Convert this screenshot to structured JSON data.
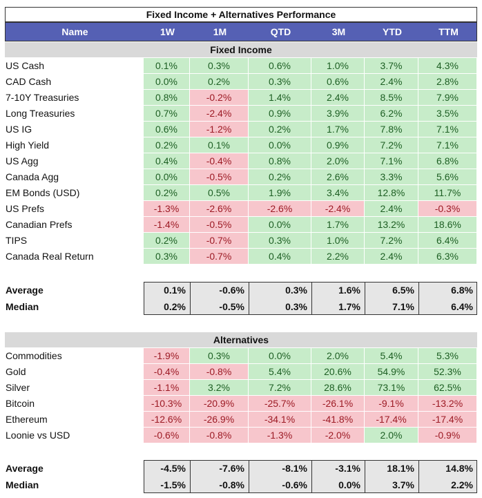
{
  "title": "Fixed Income + Alternatives Performance",
  "columns": [
    "Name",
    "1W",
    "1M",
    "QTD",
    "3M",
    "YTD",
    "TTM"
  ],
  "colors": {
    "header_bg": "#5560b4",
    "positive_bg": "#c7ecc9",
    "negative_bg": "#f7c6cc",
    "section_bg": "#d9d9d9"
  },
  "fixed_income": {
    "label": "Fixed Income",
    "rows": [
      {
        "name": "US Cash",
        "values": [
          "0.1%",
          "0.3%",
          "0.6%",
          "1.0%",
          "3.7%",
          "4.3%"
        ]
      },
      {
        "name": "CAD Cash",
        "values": [
          "0.0%",
          "0.2%",
          "0.3%",
          "0.6%",
          "2.4%",
          "2.8%"
        ]
      },
      {
        "name": "7-10Y Treasuries",
        "values": [
          "0.8%",
          "-0.2%",
          "1.4%",
          "2.4%",
          "8.5%",
          "7.9%"
        ]
      },
      {
        "name": "Long Treasuries",
        "values": [
          "0.7%",
          "-2.4%",
          "0.9%",
          "3.9%",
          "6.2%",
          "3.5%"
        ]
      },
      {
        "name": "US IG",
        "values": [
          "0.6%",
          "-1.2%",
          "0.2%",
          "1.7%",
          "7.8%",
          "7.1%"
        ]
      },
      {
        "name": "High Yield",
        "values": [
          "0.2%",
          "0.1%",
          "0.0%",
          "0.9%",
          "7.2%",
          "7.1%"
        ]
      },
      {
        "name": "US Agg",
        "values": [
          "0.4%",
          "-0.4%",
          "0.8%",
          "2.0%",
          "7.1%",
          "6.8%"
        ]
      },
      {
        "name": "Canada Agg",
        "values": [
          "0.0%",
          "-0.5%",
          "0.2%",
          "2.6%",
          "3.3%",
          "5.6%"
        ]
      },
      {
        "name": "EM Bonds (USD)",
        "values": [
          "0.2%",
          "0.5%",
          "1.9%",
          "3.4%",
          "12.8%",
          "11.7%"
        ]
      },
      {
        "name": "US Prefs",
        "values": [
          "-1.3%",
          "-2.6%",
          "-2.6%",
          "-2.4%",
          "2.4%",
          "-0.3%"
        ]
      },
      {
        "name": "Canadian Prefs",
        "values": [
          "-1.4%",
          "-0.5%",
          "0.0%",
          "1.7%",
          "13.2%",
          "18.6%"
        ]
      },
      {
        "name": "TIPS",
        "values": [
          "0.2%",
          "-0.7%",
          "0.3%",
          "1.0%",
          "7.2%",
          "6.4%"
        ]
      },
      {
        "name": "Canada Real Return",
        "values": [
          "0.3%",
          "-0.7%",
          "0.4%",
          "2.2%",
          "2.4%",
          "6.3%"
        ]
      }
    ],
    "stats": [
      {
        "name": "Average",
        "values": [
          "0.1%",
          "-0.6%",
          "0.3%",
          "1.6%",
          "6.5%",
          "6.8%"
        ]
      },
      {
        "name": "Median",
        "values": [
          "0.2%",
          "-0.5%",
          "0.3%",
          "1.7%",
          "7.1%",
          "6.4%"
        ]
      }
    ]
  },
  "alternatives": {
    "label": "Alternatives",
    "rows": [
      {
        "name": "Commodities",
        "values": [
          "-1.9%",
          "0.3%",
          "0.0%",
          "2.0%",
          "5.4%",
          "5.3%"
        ]
      },
      {
        "name": "Gold",
        "values": [
          "-0.4%",
          "-0.8%",
          "5.4%",
          "20.6%",
          "54.9%",
          "52.3%"
        ]
      },
      {
        "name": "Silver",
        "values": [
          "-1.1%",
          "3.2%",
          "7.2%",
          "28.6%",
          "73.1%",
          "62.5%"
        ]
      },
      {
        "name": "Bitcoin",
        "values": [
          "-10.3%",
          "-20.9%",
          "-25.7%",
          "-26.1%",
          "-9.1%",
          "-13.2%"
        ]
      },
      {
        "name": "Ethereum",
        "values": [
          "-12.6%",
          "-26.9%",
          "-34.1%",
          "-41.8%",
          "-17.4%",
          "-17.4%"
        ]
      },
      {
        "name": "Loonie vs USD",
        "values": [
          "-0.6%",
          "-0.8%",
          "-1.3%",
          "-2.0%",
          "2.0%",
          "-0.9%"
        ]
      }
    ],
    "stats": [
      {
        "name": "Average",
        "values": [
          "-4.5%",
          "-7.6%",
          "-8.1%",
          "-3.1%",
          "18.1%",
          "14.8%"
        ]
      },
      {
        "name": "Median",
        "values": [
          "-1.5%",
          "-0.8%",
          "-0.6%",
          "0.0%",
          "3.7%",
          "2.2%"
        ]
      }
    ]
  }
}
